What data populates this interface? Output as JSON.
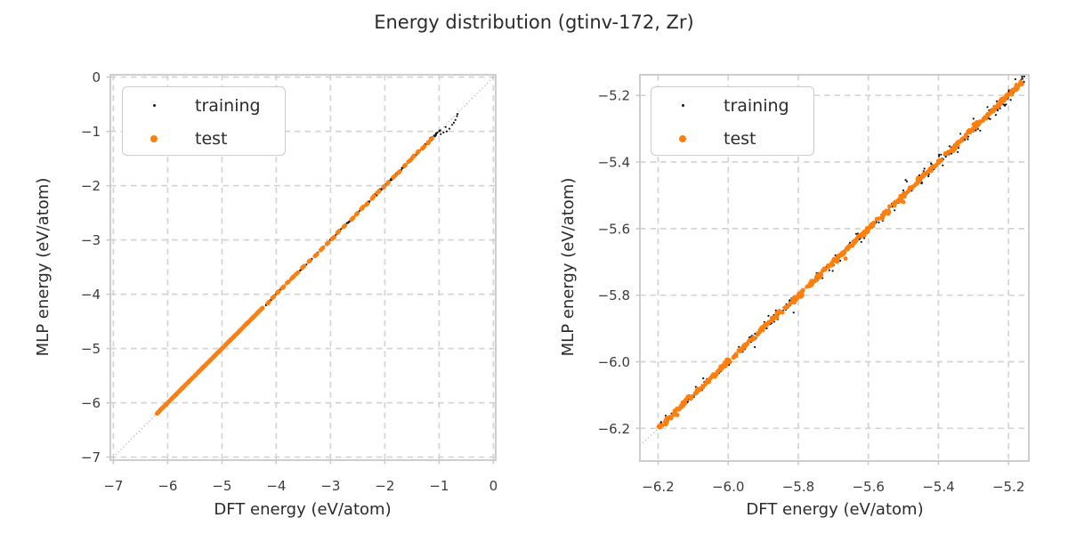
{
  "figure": {
    "title": "Energy distribution (gtinv-172, Zr)"
  },
  "style": {
    "background": "#ffffff",
    "accent_orange": "#ff7f0e",
    "series_black": "#111111",
    "grid_color": "#d4d4d4",
    "spine_color": "#c9c9c9",
    "tick_mark_color": "#c9c9c9",
    "text_color": "#2b2b2b",
    "tick_label_color": "#3c3c3c",
    "identity_line_color": "#a9a9a9"
  },
  "chart_data": [
    {
      "type": "scatter",
      "panel": "full-range",
      "xlabel": "DFT energy (eV/atom)",
      "ylabel": "MLP energy (eV/atom)",
      "xlim": [
        -7.056,
        0.043
      ],
      "ylim": [
        -7.056,
        0.043
      ],
      "xticks": {
        "values": [
          -7,
          -6,
          -5,
          -4,
          -3,
          -2,
          -1,
          0
        ],
        "labels": [
          "−7",
          "−6",
          "−5",
          "−4",
          "−3",
          "−2",
          "−1",
          "0"
        ]
      },
      "yticks": {
        "values": [
          0,
          -1,
          -2,
          -3,
          -4,
          -5,
          -6,
          -7
        ],
        "labels": [
          "0",
          "−1",
          "−2",
          "−3",
          "−4",
          "−5",
          "−6",
          "−7"
        ]
      },
      "grid": true,
      "identity_line": true,
      "legend": {
        "position": "upper-left",
        "items": [
          {
            "label": "training",
            "color": "#111111"
          },
          {
            "label": "test",
            "color": "#ff7f0e"
          }
        ]
      },
      "series": [
        {
          "name": "training",
          "color": "#111111",
          "marker_radius": 1.1,
          "seed": 11,
          "segments": [
            {
              "x0": -6.21,
              "x1": -4.3,
              "n": 80,
              "noise": 0.004
            },
            {
              "x0": -4.3,
              "x1": -2.55,
              "n": 120,
              "noise": 0.008
            },
            {
              "x0": -2.55,
              "x1": -0.98,
              "n": 160,
              "noise": 0.013
            }
          ],
          "points": [
            [
              -0.7,
              -0.79
            ],
            [
              -0.73,
              -0.84
            ],
            [
              -0.67,
              -0.72
            ],
            [
              -0.76,
              -0.88
            ],
            [
              -0.81,
              -0.95
            ],
            [
              -0.86,
              -1.0
            ],
            [
              -0.92,
              -1.02
            ],
            [
              -0.97,
              -1.05
            ],
            [
              -0.88,
              -0.92
            ],
            [
              -0.66,
              -0.68
            ]
          ]
        },
        {
          "name": "test",
          "color": "#ff7f0e",
          "marker_radius": 2.4,
          "seed": 23,
          "segments": [
            {
              "x0": -6.21,
              "x1": -4.25,
              "n": 320,
              "noise": 0.002
            }
          ],
          "clusters": {
            "centers": [
              -4.15,
              -4.05,
              -3.97,
              -3.88,
              -3.79,
              -3.7,
              -3.62,
              -3.5,
              -3.38,
              -3.27,
              -3.16,
              -3.05,
              -2.95,
              -2.86,
              -2.74,
              -2.6,
              -2.52,
              -2.42,
              -2.33,
              -2.22,
              -2.12,
              -2.02,
              -1.93,
              -1.83,
              -1.74,
              -1.64,
              -1.55,
              -1.47,
              -1.38,
              -1.29,
              -1.21,
              -1.14
            ],
            "spread": 0.022,
            "n_each": 4,
            "noise": 0.003,
            "center_dy": 0.012
          },
          "points": []
        }
      ]
    },
    {
      "type": "scatter",
      "panel": "zoomed",
      "xlabel": "DFT energy (eV/atom)",
      "ylabel": "MLP energy (eV/atom)",
      "xlim": [
        -6.252,
        -5.142
      ],
      "ylim": [
        -6.298,
        -5.138
      ],
      "xticks": {
        "values": [
          -6.2,
          -6.0,
          -5.8,
          -5.6,
          -5.4,
          -5.2
        ],
        "labels": [
          "−6.2",
          "−6.0",
          "−5.8",
          "−5.6",
          "−5.4",
          "−5.2"
        ]
      },
      "yticks": {
        "values": [
          -5.2,
          -5.4,
          -5.6,
          -5.8,
          -6.0,
          -6.2
        ],
        "labels": [
          "−5.2",
          "−5.4",
          "−5.6",
          "−5.8",
          "−6.0",
          "−6.2"
        ]
      },
      "grid": true,
      "identity_line": true,
      "legend": {
        "position": "upper-left",
        "items": [
          {
            "label": "training",
            "color": "#111111"
          },
          {
            "label": "test",
            "color": "#ff7f0e"
          }
        ]
      },
      "series": [
        {
          "name": "training",
          "color": "#111111",
          "marker_radius": 1.1,
          "seed": 37,
          "segments": [
            {
              "x0": -6.2,
              "x1": -5.155,
              "n": 260,
              "noise": 0.006
            },
            {
              "x0": -6.2,
              "x1": -5.155,
              "n": 70,
              "noise": 0.013
            },
            {
              "x0": -5.45,
              "x1": -5.155,
              "n": 60,
              "noise": 0.012
            }
          ],
          "points": [
            [
              -5.885,
              -5.862
            ],
            [
              -5.63,
              -5.615
            ],
            [
              -5.525,
              -5.545
            ],
            [
              -5.44,
              -5.42
            ],
            [
              -5.345,
              -5.37
            ],
            [
              -5.3,
              -5.27
            ],
            [
              -5.62,
              -5.64
            ],
            [
              -5.26,
              -5.235
            ]
          ]
        },
        {
          "name": "test",
          "color": "#ff7f0e",
          "marker_radius": 2.4,
          "seed": 53,
          "segments": [
            {
              "x0": -6.2,
              "x1": -5.155,
              "n": 380,
              "noise": 0.003
            }
          ],
          "clusters": {
            "centers": [
              -6.175,
              -6.12,
              -6.065,
              -6.01,
              -5.955,
              -5.9,
              -5.85,
              -5.8,
              -5.75,
              -5.7,
              -5.65,
              -5.6,
              -5.55,
              -5.5,
              -5.45,
              -5.4,
              -5.35,
              -5.3,
              -5.25,
              -5.21,
              -5.175
            ],
            "spread": 0.013,
            "n_each": 7,
            "noise": 0.003,
            "center_dy": 0.008
          },
          "points": [
            [
              -5.665,
              -5.69
            ],
            [
              -5.5,
              -5.52
            ],
            [
              -6.145,
              -6.16
            ]
          ]
        }
      ]
    }
  ]
}
